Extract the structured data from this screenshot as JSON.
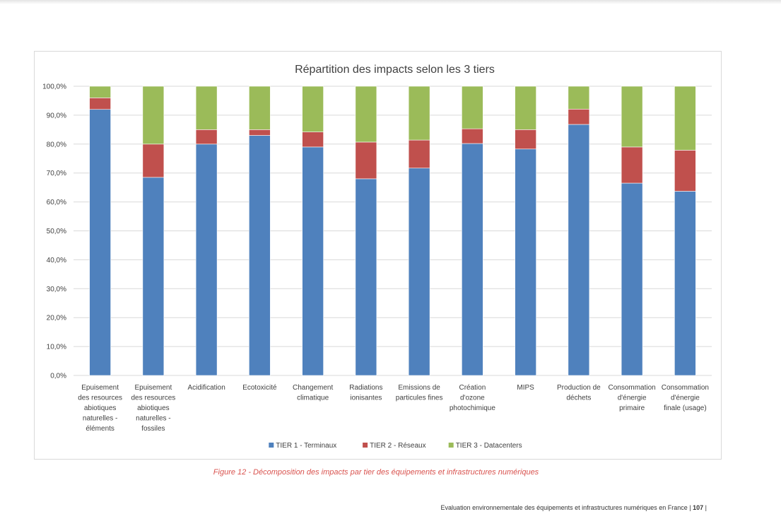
{
  "chart_data": {
    "type": "bar",
    "stacked": true,
    "percent": true,
    "title": "Répartition des impacts selon les 3 tiers",
    "ylim": [
      0,
      100
    ],
    "yticks": [
      "0,0%",
      "10,0%",
      "20,0%",
      "30,0%",
      "40,0%",
      "50,0%",
      "60,0%",
      "70,0%",
      "80,0%",
      "90,0%",
      "100,0%"
    ],
    "grid": true,
    "legend_position": "bottom",
    "categories": [
      "Epuisement des resources abiotiques naturelles - éléments",
      "Epuisement des resources abiotiques naturelles - fossiles",
      "Acidification",
      "Ecotoxicité",
      "Changement climatique",
      "Radiations ionisantes",
      "Emissions de particules fines",
      "Création d'ozone photochimique",
      "MIPS",
      "Production de déchets",
      "Consommation d'énergie primaire",
      "Consommation d'énergie finale (usage)"
    ],
    "category_lines": [
      [
        "Epuisement",
        "des resources",
        "abiotiques",
        "naturelles -",
        "éléments"
      ],
      [
        "Epuisement",
        "des resources",
        "abiotiques",
        "naturelles -",
        "fossiles"
      ],
      [
        "Acidification"
      ],
      [
        "Ecotoxicité"
      ],
      [
        "Changement",
        "climatique"
      ],
      [
        "Radiations",
        "ionisantes"
      ],
      [
        "Emissions de",
        "particules fines"
      ],
      [
        "Création",
        "d'ozone",
        "photochimique"
      ],
      [
        "MIPS"
      ],
      [
        "Production de",
        "déchets"
      ],
      [
        "Consommation",
        "d'énergie",
        "primaire"
      ],
      [
        "Consommation",
        "d'énergie",
        "finale (usage)"
      ]
    ],
    "series": [
      {
        "name": "TIER 1 - Terminaux",
        "color": "#4f81bd",
        "values": [
          92,
          68.5,
          80,
          83,
          79,
          68,
          71.7,
          80.2,
          78.3,
          86.8,
          66.5,
          63.7
        ]
      },
      {
        "name": "TIER 2 - Réseaux",
        "color": "#c0504d",
        "values": [
          4,
          11.5,
          5,
          2,
          5.2,
          12.7,
          9.7,
          5.1,
          6.7,
          5.3,
          12.5,
          14.2
        ]
      },
      {
        "name": "TIER 3 - Datacenters",
        "color": "#9bbb59",
        "values": [
          4,
          20,
          15,
          15,
          15.8,
          19.3,
          18.6,
          14.7,
          15,
          7.9,
          21,
          22.1
        ]
      }
    ]
  },
  "caption": "Figure 12 - Décomposition des impacts par tier des équipements et infrastructures numériques",
  "footer": {
    "text": "Evaluation environnementale des équipements et infrastructures numériques en France |",
    "page_number": "107",
    "trailing": "|"
  }
}
